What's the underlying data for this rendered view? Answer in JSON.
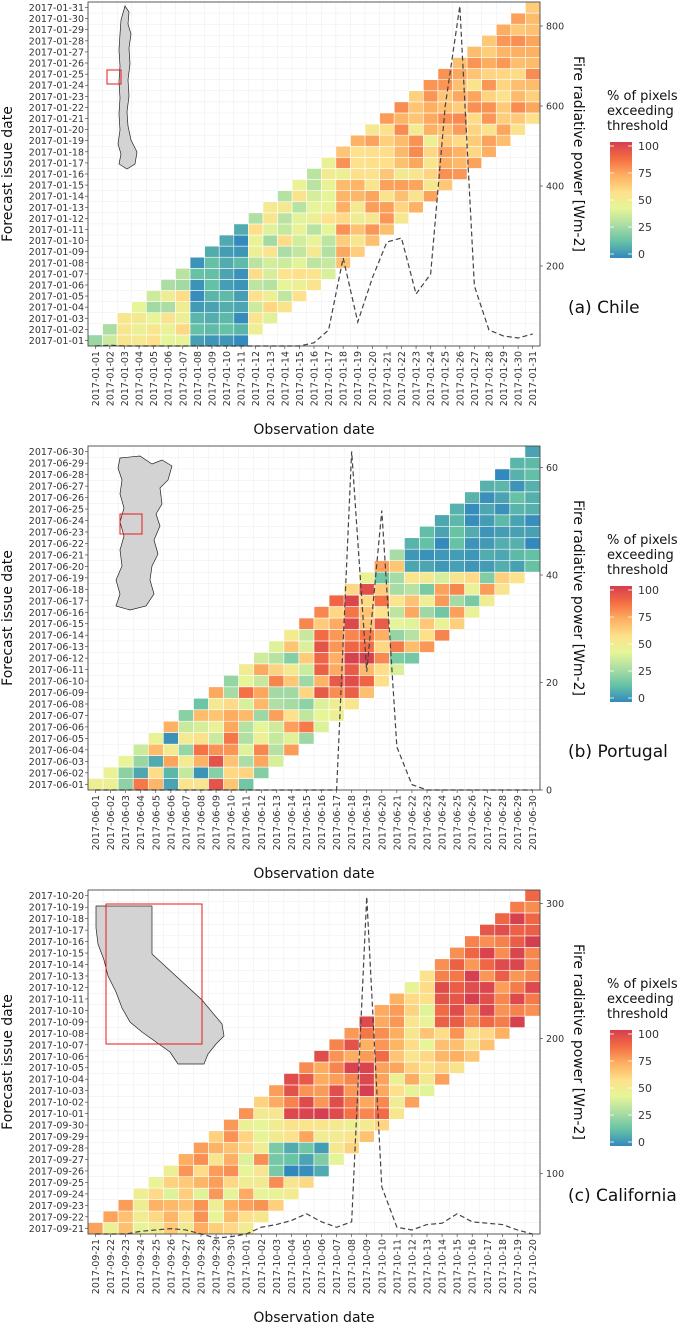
{
  "colors": {
    "scale": [
      "#3288bd",
      "#66c2a5",
      "#abdda4",
      "#e6f598",
      "#fee08b",
      "#fdae61",
      "#f46d43",
      "#d53e4f"
    ],
    "frp_line": "#444444",
    "inset_border": "#e41a1c",
    "land": "#d3d3d3"
  },
  "legend": {
    "title_lines": [
      "% of pixels",
      "exceeding",
      "threshold"
    ],
    "ticks": [
      "100",
      "75",
      "50",
      "25",
      "0"
    ]
  },
  "chart_data": [
    {
      "type": "heatmap",
      "label": "(a) Chile",
      "xlabel": "Observation date",
      "ylabel": "Forecast issue date",
      "y2label": "Fire radiative power [Wm-2]",
      "y2_ticks": [
        "800",
        "600",
        "400",
        "200"
      ],
      "y2_range": [
        0,
        860
      ],
      "inset": "chile",
      "start_day": "2017-01-01",
      "days": 31,
      "dates": [
        "2017-01-01",
        "2017-01-02",
        "2017-01-03",
        "2017-01-04",
        "2017-01-05",
        "2017-01-06",
        "2017-01-07",
        "2017-01-08",
        "2017-01-09",
        "2017-01-10",
        "2017-01-11",
        "2017-01-12",
        "2017-01-13",
        "2017-01-14",
        "2017-01-15",
        "2017-01-16",
        "2017-01-17",
        "2017-01-18",
        "2017-01-19",
        "2017-01-20",
        "2017-01-21",
        "2017-01-22",
        "2017-01-23",
        "2017-01-24",
        "2017-01-25",
        "2017-01-26",
        "2017-01-27",
        "2017-01-28",
        "2017-01-29",
        "2017-01-30",
        "2017-01-31"
      ],
      "frp": [
        0,
        2,
        0,
        0,
        0,
        0,
        0,
        0,
        0,
        0,
        0,
        0,
        0,
        0,
        0,
        8,
        40,
        220,
        60,
        170,
        260,
        270,
        130,
        180,
        600,
        850,
        150,
        40,
        25,
        20,
        30
      ]
    },
    {
      "type": "heatmap",
      "label": "(b) Portugal",
      "xlabel": "Observation date",
      "ylabel": "Forecast issue date",
      "y2label": "Fire radiative power [Wm-2]",
      "y2_ticks": [
        "60",
        "40",
        "20",
        "0"
      ],
      "y2_range": [
        0,
        64
      ],
      "inset": "portugal",
      "start_day": "2017-06-01",
      "days": 30,
      "dates": [
        "2017-06-01",
        "2017-06-02",
        "2017-06-03",
        "2017-06-04",
        "2017-06-05",
        "2017-06-06",
        "2017-06-07",
        "2017-06-08",
        "2017-06-09",
        "2017-06-10",
        "2017-06-11",
        "2017-06-12",
        "2017-06-13",
        "2017-06-14",
        "2017-06-15",
        "2017-06-16",
        "2017-06-17",
        "2017-06-18",
        "2017-06-19",
        "2017-06-20",
        "2017-06-21",
        "2017-06-22",
        "2017-06-23",
        "2017-06-24",
        "2017-06-25",
        "2017-06-26",
        "2017-06-27",
        "2017-06-28",
        "2017-06-29",
        "2017-06-30"
      ],
      "frp": [
        0,
        0,
        0,
        0,
        0,
        0,
        0,
        0,
        0,
        0,
        0,
        0,
        0,
        0,
        0,
        0,
        0,
        63,
        22,
        52,
        8,
        1,
        0,
        0,
        0,
        0,
        0,
        0,
        0,
        0
      ]
    },
    {
      "type": "heatmap",
      "label": "(c) California",
      "xlabel": "Observation date",
      "ylabel": "Forecast issue date",
      "y2label": "Fire radiative power [Wm-2]",
      "y2_ticks": [
        "300",
        "200",
        "100"
      ],
      "y2_range": [
        55,
        310
      ],
      "inset": "california",
      "start_day": "2017-09-21",
      "days": 30,
      "dates": [
        "2017-09-21",
        "2017-09-22",
        "2017-09-23",
        "2017-09-24",
        "2017-09-25",
        "2017-09-26",
        "2017-09-27",
        "2017-09-28",
        "2017-09-29",
        "2017-09-30",
        "2017-10-01",
        "2017-10-02",
        "2017-10-03",
        "2017-10-04",
        "2017-10-05",
        "2017-10-06",
        "2017-10-07",
        "2017-10-08",
        "2017-10-09",
        "2017-10-10",
        "2017-10-11",
        "2017-10-12",
        "2017-10-13",
        "2017-10-14",
        "2017-10-15",
        "2017-10-16",
        "2017-10-17",
        "2017-10-18",
        "2017-10-19",
        "2017-10-20"
      ],
      "frp": [
        55,
        55,
        55,
        57,
        58,
        59,
        58,
        55,
        52,
        53,
        55,
        60,
        62,
        65,
        70,
        64,
        60,
        64,
        305,
        90,
        60,
        58,
        62,
        63,
        70,
        64,
        63,
        62,
        58,
        55
      ]
    }
  ]
}
